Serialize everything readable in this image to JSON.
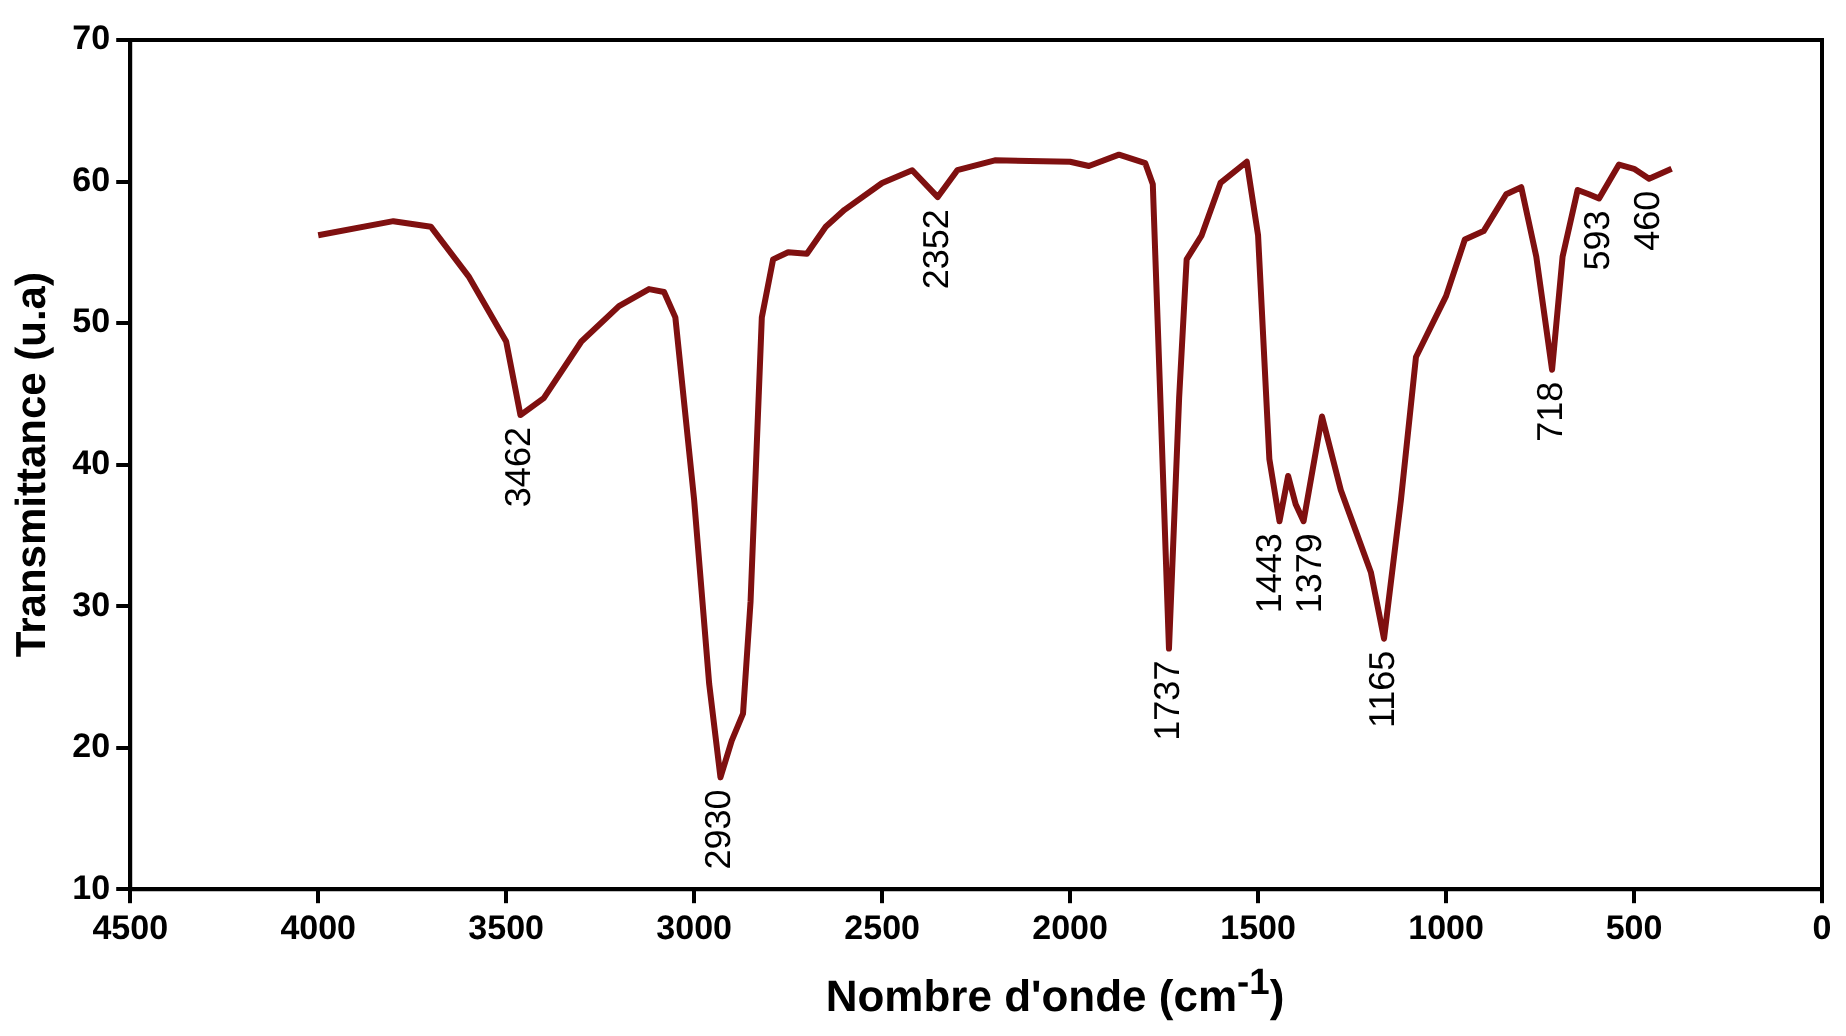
{
  "chart_data": {
    "type": "line",
    "xlabel": "Nombre d'onde (cm$^{-1}$)",
    "ylabel": "Transmittance (u.a)",
    "x": [
      4000,
      3800,
      3700,
      3600,
      3500,
      3462,
      3400,
      3300,
      3200,
      3120,
      3080,
      3050,
      3000,
      2960,
      2930,
      2900,
      2870,
      2850,
      2820,
      2790,
      2750,
      2700,
      2650,
      2600,
      2500,
      2420,
      2352,
      2300,
      2200,
      2000,
      1950,
      1870,
      1800,
      1780,
      1760,
      1737,
      1710,
      1690,
      1650,
      1600,
      1530,
      1500,
      1470,
      1443,
      1420,
      1400,
      1379,
      1330,
      1280,
      1240,
      1200,
      1165,
      1120,
      1080,
      1000,
      950,
      900,
      840,
      800,
      760,
      718,
      690,
      650,
      620,
      593,
      540,
      500,
      460,
      400
    ],
    "series": [
      {
        "color": "#7f1010",
        "values": [
          56.2,
          57.2,
          56.8,
          53.3,
          48.7,
          43.5,
          44.7,
          48.7,
          51.2,
          52.4,
          52.2,
          50.4,
          37.5,
          24.5,
          17.9,
          20.5,
          22.4,
          30.3,
          50.4,
          54.5,
          55,
          54.9,
          56.8,
          58,
          59.9,
          60.8,
          58.9,
          60.8,
          61.5,
          61.4,
          61.1,
          61.9,
          61.3,
          59.8,
          44.7,
          27,
          44.7,
          54.5,
          56.2,
          59.9,
          61.4,
          56.2,
          40.4,
          36,
          39.2,
          37.2,
          36,
          43.4,
          38.2,
          35.3,
          32.4,
          27.7,
          37.5,
          47.6,
          51.9,
          55.9,
          56.5,
          59.1,
          59.6,
          54.7,
          46.7,
          54.7,
          59.4,
          59.1,
          58.8,
          61.2,
          60.9,
          60.2,
          60.9
        ]
      }
    ],
    "xlim": [
      4500,
      0
    ],
    "xticks": [
      4500,
      4000,
      3500,
      3000,
      2500,
      2000,
      1500,
      1000,
      500,
      0
    ],
    "ylim": [
      10,
      70
    ],
    "yticks": [
      10,
      20,
      30,
      40,
      50,
      60,
      70
    ],
    "grid": false,
    "legend": false,
    "marker": "none",
    "line_style": "solid",
    "annotations": [
      {
        "text": "3462",
        "x": 3462,
        "y": 43.5
      },
      {
        "text": "2930",
        "x": 2930,
        "y": 17.9
      },
      {
        "text": "2352",
        "x": 2352,
        "y": 58.9
      },
      {
        "text": "1737",
        "x": 1737,
        "y": 27
      },
      {
        "text": "1443",
        "x": 1443,
        "y": 36
      },
      {
        "text": "1379",
        "x": 1379,
        "y": 36
      },
      {
        "text": "1165",
        "x": 1165,
        "y": 27.7
      },
      {
        "text": "718",
        "x": 718,
        "y": 46.7
      },
      {
        "text": "593",
        "x": 593,
        "y": 58.8
      },
      {
        "text": "460",
        "x": 460,
        "y": 60.2
      }
    ]
  }
}
